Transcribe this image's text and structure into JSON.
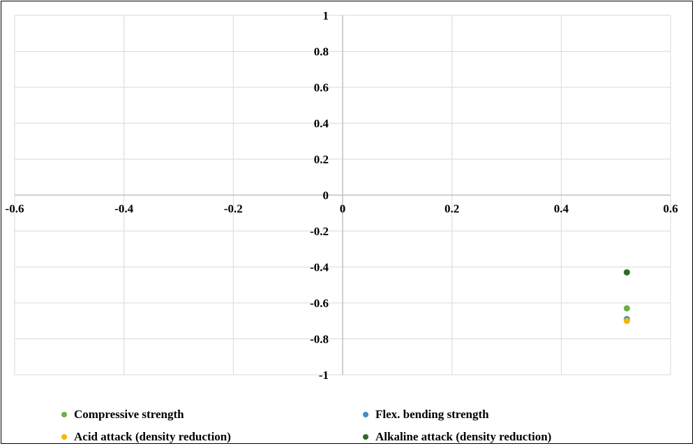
{
  "chart_data": {
    "type": "scatter",
    "title": "",
    "xlabel": "",
    "ylabel": "",
    "xlim": [
      -0.6,
      0.6
    ],
    "ylim": [
      -1,
      1
    ],
    "x_ticks": [
      "-0.6",
      "-0.4",
      "-0.2",
      "0",
      "0.2",
      "0.4",
      "0.6"
    ],
    "y_ticks": [
      "1",
      "0.8",
      "0.6",
      "0.4",
      "0.2",
      "0",
      "-0.2",
      "-0.4",
      "-0.6",
      "-0.8",
      "-1"
    ],
    "grid": true,
    "legend_position": "bottom",
    "series": [
      {
        "name": "Compressive strength",
        "color": "#6ab04c",
        "points": [
          {
            "x": 0.52,
            "y": -0.63
          }
        ]
      },
      {
        "name": "Flex. bending strength",
        "color": "#3b8fd1",
        "points": [
          {
            "x": 0.52,
            "y": -0.69
          }
        ]
      },
      {
        "name": "Acid attack (density reduction)",
        "color": "#f5b800",
        "points": [
          {
            "x": 0.52,
            "y": -0.7
          }
        ]
      },
      {
        "name": "Alkaline attack (density reduction)",
        "color": "#2e6b2a",
        "points": [
          {
            "x": 0.52,
            "y": -0.43
          }
        ]
      }
    ]
  }
}
